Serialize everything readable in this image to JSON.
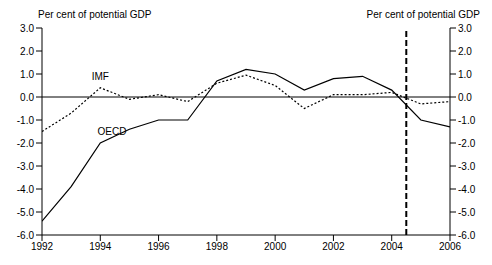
{
  "chart_data": {
    "type": "line",
    "y_label": "Per cent of potential GDP",
    "y2_label": "Per cent of potential GDP",
    "x": [
      1992,
      1993,
      1994,
      1995,
      1996,
      1997,
      1998,
      1999,
      2000,
      2001,
      2002,
      2003,
      2004,
      2005,
      2006
    ],
    "series": [
      {
        "name": "IMF",
        "color": "#000000",
        "line_style": "dotted",
        "values": [
          -1.5,
          -0.7,
          0.4,
          -0.1,
          0.1,
          -0.2,
          0.6,
          0.95,
          0.5,
          -0.5,
          0.1,
          0.1,
          0.2,
          -0.3,
          -0.2
        ]
      },
      {
        "name": "OECD",
        "color": "#000000",
        "line_style": "solid",
        "values": [
          -5.4,
          -3.9,
          -2.0,
          -1.4,
          -1.0,
          -1.0,
          0.7,
          1.2,
          1.0,
          0.3,
          0.8,
          0.9,
          0.3,
          -1.0,
          -1.3
        ]
      }
    ],
    "annotations": [
      {
        "text": "IMF",
        "x": 1994.0,
        "y": 0.9
      },
      {
        "text": "OECD",
        "x": 1994.4,
        "y": -1.5
      }
    ],
    "reference_x": 2004.5,
    "reference_line_style": "dashed",
    "baseline": 0,
    "xlim": [
      1992,
      2006
    ],
    "xticks": [
      1992,
      1994,
      1996,
      1998,
      2000,
      2002,
      2004,
      2006
    ],
    "ylim": [
      -6,
      3
    ],
    "yticks": [
      {
        "value": -6,
        "label": "-6.0"
      },
      {
        "value": -5,
        "label": "-5.0"
      },
      {
        "value": -4,
        "label": "-4.0"
      },
      {
        "value": -3,
        "label": "-3.0"
      },
      {
        "value": -2,
        "label": "-2.0"
      },
      {
        "value": -1,
        "label": "-1.0"
      },
      {
        "value": 0,
        "label": "0.0"
      },
      {
        "value": 1,
        "label": "1.0"
      },
      {
        "value": 2,
        "label": "2.0"
      },
      {
        "value": 3,
        "label": "3.0"
      }
    ],
    "y2lim": [
      -6,
      3
    ],
    "y2ticks": [
      {
        "value": -6,
        "label": "-6.0"
      },
      {
        "value": -5,
        "label": "-5.0"
      },
      {
        "value": -4,
        "label": "-4.0"
      },
      {
        "value": -3,
        "label": "-3.0"
      },
      {
        "value": -2,
        "label": "-2.0"
      },
      {
        "value": -1,
        "label": "-1.0"
      },
      {
        "value": 0,
        "label": "0.0"
      },
      {
        "value": 1,
        "label": "1.0"
      },
      {
        "value": 2,
        "label": "2.0"
      },
      {
        "value": 3,
        "label": "3.0"
      }
    ],
    "grid": false,
    "legend": false
  }
}
